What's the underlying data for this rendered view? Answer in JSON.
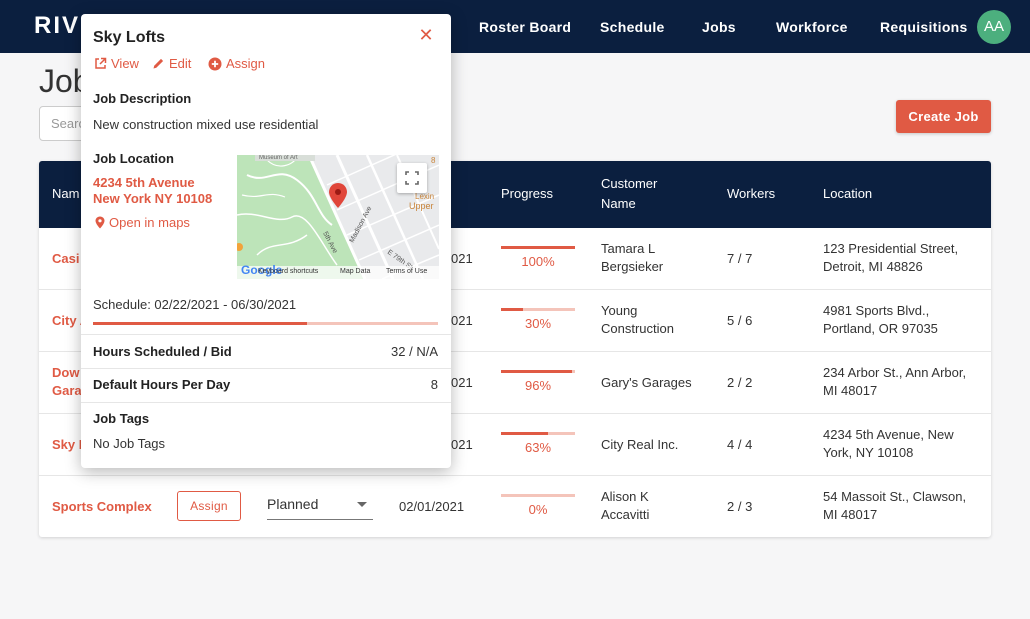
{
  "header": {
    "brand": "RIV",
    "nav": [
      "Roster Board",
      "Schedule",
      "Jobs",
      "Workforce",
      "Requisitions"
    ],
    "avatar_initials": "AA",
    "colors": {
      "navy": "#0b1f3f",
      "accent": "#e05a44",
      "avatar": "#4caf7e"
    }
  },
  "page": {
    "title": "Job",
    "search_placeholder": "Searc",
    "create_button": "Create Job"
  },
  "table": {
    "columns": {
      "name": "Nam",
      "progress": "Progress",
      "customer": "Customer Name",
      "customer_line1": "Customer",
      "customer_line2": "Name",
      "workers": "Workers",
      "location": "Location"
    },
    "rows": [
      {
        "name": "Casi",
        "date_fragment": "021",
        "progress": 100,
        "progress_label": "100%",
        "customer_line1": "Tamara L",
        "customer_line2": "Bergsieker",
        "workers": "7 / 7",
        "location_line1": "123 Presidential Street,",
        "location_line2": "Detroit, MI 48826"
      },
      {
        "name": "City A",
        "date_fragment": "021",
        "progress": 30,
        "progress_label": "30%",
        "customer_line1": "Young",
        "customer_line2": "Construction",
        "workers": "5 / 6",
        "location_line1": "4981 Sports Blvd.,",
        "location_line2": "Portland, OR 97035"
      },
      {
        "name_line1": "Dow",
        "name_line2": "Gara",
        "date_fragment": "021",
        "progress": 96,
        "progress_label": "96%",
        "customer_line1": "Gary's Garages",
        "customer_line2": "",
        "workers": "2 / 2",
        "location_line1": "234 Arbor St., Ann Arbor,",
        "location_line2": "MI 48017"
      },
      {
        "name": "Sky L",
        "date_fragment": "021",
        "progress": 63,
        "progress_label": "63%",
        "customer_line1": "City Real Inc.",
        "customer_line2": "",
        "workers": "4 / 4",
        "location_line1": "4234 5th Avenue, New",
        "location_line2": "York, NY 10108"
      },
      {
        "name": "Sports Complex",
        "assign": "Assign",
        "status": "Planned",
        "date": "02/01/2021",
        "progress": 0,
        "progress_label": "0%",
        "customer_line1": "Alison K",
        "customer_line2": "Accavitti",
        "workers": "2 / 3",
        "location_line1": "54 Massoit St., Clawson,",
        "location_line2": "MI 48017"
      }
    ]
  },
  "popover": {
    "title": "Sky Lofts",
    "actions": {
      "view": "View",
      "edit": "Edit",
      "assign": "Assign"
    },
    "description_heading": "Job Description",
    "description": "New construction mixed use residential",
    "location_heading": "Job Location",
    "address_line1": "4234 5th Avenue",
    "address_line2": "New York NY 10108",
    "open_maps": "Open in maps",
    "map": {
      "google": "Google",
      "shortcuts": "Keyboard shortcuts",
      "map_data": "Map Data",
      "terms": "Terms of Use",
      "street_5th": "5th Ave",
      "street_madison": "Madison Ave",
      "street_79th": "E 79th St",
      "upper": "Upper",
      "top_label": "Museum of Art",
      "lexing": "Lexin"
    },
    "schedule": "Schedule: 02/22/2021 - 06/30/2021",
    "schedule_progress": 0.62,
    "hours_label": "Hours Scheduled / Bid",
    "hours_value": "32 / N/A",
    "default_hours_label": "Default Hours Per Day",
    "default_hours_value": "8",
    "tags_heading": "Job Tags",
    "tags_value": "No Job Tags"
  }
}
